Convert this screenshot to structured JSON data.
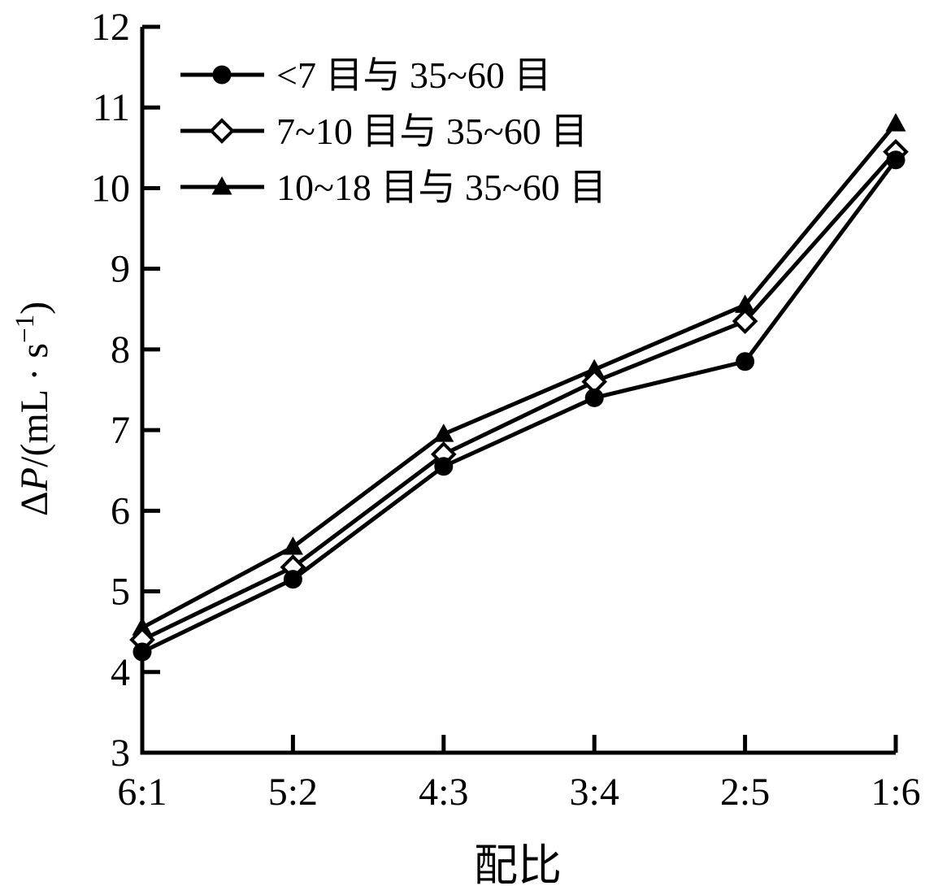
{
  "figure": {
    "background": "#ffffff"
  },
  "chart_data": {
    "type": "line",
    "title": "",
    "xlabel": "配比",
    "ylabel": "ΔP/(mL·s⁻¹)",
    "ylabel_parts": {
      "delta": "Δ",
      "symbol_italic": "P",
      "unit_prefix": "/(mL · s",
      "superscript": "−1",
      "suffix": ")"
    },
    "categories": [
      "6:1",
      "5:2",
      "4:3",
      "3:4",
      "2:5",
      "1:6"
    ],
    "yticks": [
      "3",
      "4",
      "5",
      "6",
      "7",
      "8",
      "9",
      "10",
      "11",
      "12"
    ],
    "ylim": [
      3,
      12
    ],
    "grid": false,
    "legend_position": "top-left-inside",
    "axis_color": "#000000",
    "line_color": "#000000",
    "marker_fill": "#000000",
    "open_marker_fill": "#ffffff",
    "series": [
      {
        "name": "<7 目与 35~60 目",
        "marker": "filled-circle",
        "values": [
          4.25,
          5.15,
          6.55,
          7.4,
          7.85,
          10.35
        ]
      },
      {
        "name": "7~10 目与 35~60 目",
        "marker": "open-diamond",
        "values": [
          4.4,
          5.3,
          6.7,
          7.6,
          8.35,
          10.45
        ]
      },
      {
        "name": "10~18 目与 35~60 目",
        "marker": "filled-triangle",
        "values": [
          4.55,
          5.55,
          6.95,
          7.75,
          8.55,
          10.8
        ]
      }
    ]
  }
}
